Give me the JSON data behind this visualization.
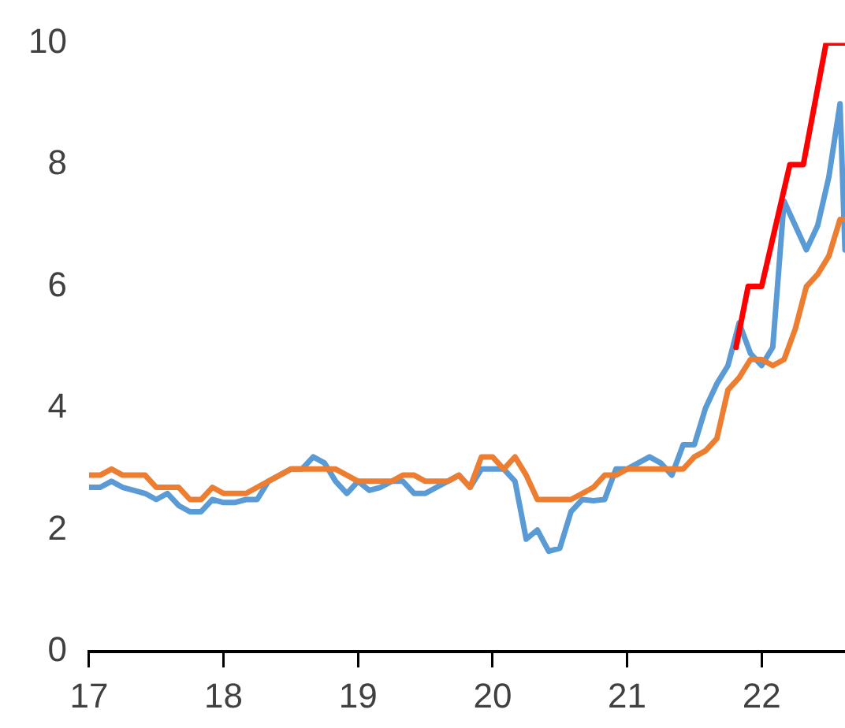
{
  "chart_data": {
    "type": "line",
    "xlim": [
      17,
      22.62
    ],
    "xticks": [
      17,
      18,
      19,
      20,
      21,
      22
    ],
    "ylim": [
      0,
      10
    ],
    "yticks": [
      0,
      2,
      4,
      6,
      8,
      10
    ],
    "grid": false,
    "legend": false,
    "marker": "none",
    "line_style": "solid",
    "series": [
      {
        "color": "#5b9bd5",
        "x": [
          17,
          17.083,
          17.167,
          17.25,
          17.333,
          17.417,
          17.5,
          17.583,
          17.667,
          17.75,
          17.833,
          17.917,
          18,
          18.083,
          18.167,
          18.25,
          18.333,
          18.417,
          18.5,
          18.583,
          18.667,
          18.75,
          18.833,
          18.917,
          19,
          19.083,
          19.167,
          19.25,
          19.333,
          19.417,
          19.5,
          19.583,
          19.667,
          19.75,
          19.833,
          19.917,
          20,
          20.083,
          20.167,
          20.25,
          20.333,
          20.417,
          20.5,
          20.583,
          20.667,
          20.75,
          20.833,
          20.917,
          21,
          21.083,
          21.167,
          21.25,
          21.333,
          21.417,
          21.5,
          21.583,
          21.667,
          21.75,
          21.833,
          21.917,
          22,
          22.083,
          22.167,
          22.25,
          22.333,
          22.417,
          22.5,
          22.583,
          22.62
        ],
        "values": [
          2.7,
          2.7,
          2.8,
          2.7,
          2.65,
          2.6,
          2.5,
          2.6,
          2.4,
          2.3,
          2.3,
          2.5,
          2.45,
          2.45,
          2.5,
          2.5,
          2.8,
          2.9,
          3.0,
          3.0,
          3.2,
          3.1,
          2.8,
          2.6,
          2.8,
          2.65,
          2.7,
          2.8,
          2.8,
          2.6,
          2.6,
          2.7,
          2.8,
          2.9,
          2.7,
          3.0,
          3.0,
          3.0,
          2.8,
          1.85,
          2.0,
          1.65,
          1.7,
          2.3,
          2.5,
          2.48,
          2.5,
          3.0,
          3.0,
          3.1,
          3.2,
          3.1,
          2.9,
          3.4,
          3.4,
          4.0,
          4.4,
          4.7,
          5.4,
          4.9,
          4.7,
          5.0,
          7.4,
          7.0,
          6.6,
          7.0,
          7.8,
          9.0,
          6.6
        ]
      },
      {
        "color": "#ed7d31",
        "x": [
          17,
          17.083,
          17.167,
          17.25,
          17.333,
          17.417,
          17.5,
          17.583,
          17.667,
          17.75,
          17.833,
          17.917,
          18,
          18.083,
          18.167,
          18.25,
          18.333,
          18.417,
          18.5,
          18.583,
          18.667,
          18.75,
          18.833,
          18.917,
          19,
          19.083,
          19.167,
          19.25,
          19.333,
          19.417,
          19.5,
          19.583,
          19.667,
          19.75,
          19.833,
          19.917,
          20,
          20.083,
          20.167,
          20.25,
          20.333,
          20.417,
          20.5,
          20.583,
          20.667,
          20.75,
          20.833,
          20.917,
          21,
          21.083,
          21.167,
          21.25,
          21.333,
          21.417,
          21.5,
          21.583,
          21.667,
          21.75,
          21.833,
          21.917,
          22,
          22.083,
          22.167,
          22.25,
          22.333,
          22.417,
          22.5,
          22.583,
          22.62
        ],
        "values": [
          2.9,
          2.9,
          3.0,
          2.9,
          2.9,
          2.9,
          2.7,
          2.7,
          2.7,
          2.5,
          2.5,
          2.7,
          2.6,
          2.6,
          2.6,
          2.7,
          2.8,
          2.9,
          3.0,
          3.0,
          3.0,
          3.0,
          3.0,
          2.9,
          2.8,
          2.8,
          2.8,
          2.8,
          2.9,
          2.9,
          2.8,
          2.8,
          2.8,
          2.9,
          2.7,
          3.2,
          3.2,
          3.0,
          3.2,
          2.9,
          2.5,
          2.5,
          2.5,
          2.5,
          2.6,
          2.7,
          2.9,
          2.9,
          3.0,
          3.0,
          3.0,
          3.0,
          3.0,
          3.0,
          3.2,
          3.3,
          3.5,
          4.3,
          4.5,
          4.8,
          4.8,
          4.7,
          4.8,
          5.3,
          6.0,
          6.2,
          6.5,
          7.1,
          7.1
        ]
      },
      {
        "color": "#ff0000",
        "x": [
          21.81,
          21.9,
          22.0,
          22.21,
          22.31,
          22.48,
          22.62
        ],
        "values": [
          5.0,
          6.0,
          6.0,
          8.0,
          8.0,
          10.0,
          10.0
        ]
      }
    ]
  }
}
